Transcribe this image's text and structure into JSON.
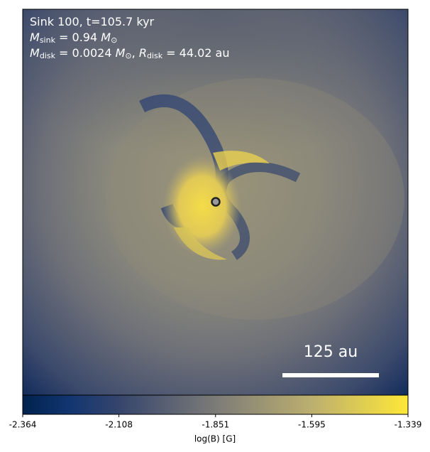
{
  "chart_data": {
    "type": "image",
    "annotations": [
      [
        "Sink 100, t=105.7 kyr"
      ],
      [
        "M",
        "sink",
        " = 0.94 ",
        "M",
        "⊙"
      ],
      [
        "M",
        "disk",
        " = 0.0024 ",
        "M",
        "⊙",
        ", ",
        "R",
        "disk",
        " = 44.02 au"
      ]
    ],
    "scale_bar": "125 au",
    "colorbar": {
      "label": "log(B) [G]",
      "lim": [
        -2.364,
        -1.339
      ],
      "ticks": [
        -2.364,
        -2.108,
        -1.851,
        -1.595,
        -1.339
      ]
    }
  }
}
